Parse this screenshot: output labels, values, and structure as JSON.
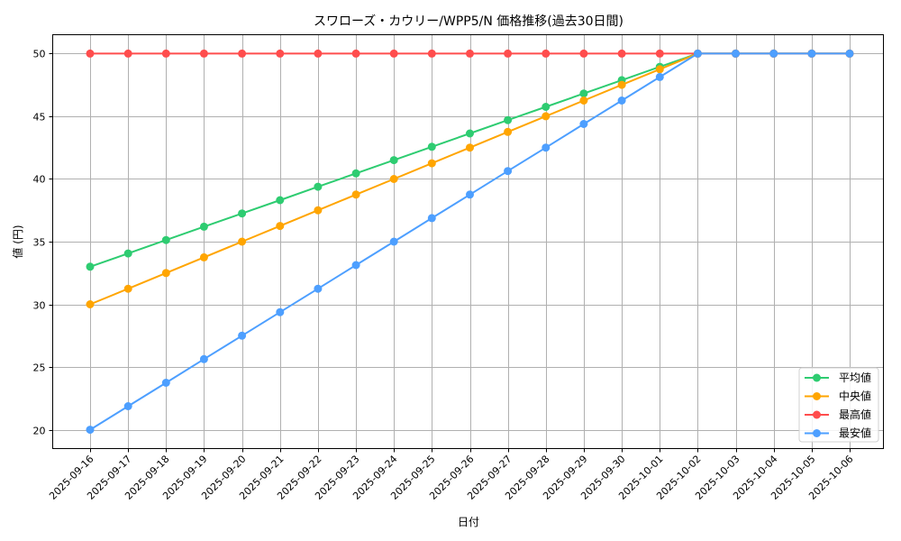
{
  "chart_data": {
    "type": "line",
    "title": "スワローズ・カウリー/WPP5/N 価格推移(過去30日間)",
    "xlabel": "日付",
    "ylabel": "値 (円)",
    "ylim": [
      18.5,
      51.5
    ],
    "yticks": [
      20,
      25,
      30,
      35,
      40,
      45,
      50
    ],
    "grid": true,
    "legend_position": "lower right",
    "x": [
      "2025-09-16",
      "2025-09-17",
      "2025-09-18",
      "2025-09-19",
      "2025-09-20",
      "2025-09-21",
      "2025-09-22",
      "2025-09-23",
      "2025-09-24",
      "2025-09-25",
      "2025-09-26",
      "2025-09-27",
      "2025-09-28",
      "2025-09-29",
      "2025-09-30",
      "2025-10-01",
      "2025-10-02",
      "2025-10-03",
      "2025-10-04",
      "2025-10-05",
      "2025-10-06"
    ],
    "series": [
      {
        "name": "平均値",
        "color": "#2ecc71",
        "values": [
          33.0,
          34.06,
          35.13,
          36.19,
          37.25,
          38.31,
          39.38,
          40.44,
          41.5,
          42.56,
          43.63,
          44.69,
          45.75,
          46.81,
          47.88,
          48.94,
          50.0,
          50.0,
          50.0,
          50.0,
          50.0
        ]
      },
      {
        "name": "中央値",
        "color": "#ffa500",
        "values": [
          30.0,
          31.25,
          32.5,
          33.75,
          35.0,
          36.25,
          37.5,
          38.75,
          40.0,
          41.25,
          42.5,
          43.75,
          45.0,
          46.25,
          47.5,
          48.75,
          50.0,
          50.0,
          50.0,
          50.0,
          50.0
        ]
      },
      {
        "name": "最高値",
        "color": "#ff4d4d",
        "values": [
          50,
          50,
          50,
          50,
          50,
          50,
          50,
          50,
          50,
          50,
          50,
          50,
          50,
          50,
          50,
          50,
          50,
          50,
          50,
          50,
          50
        ]
      },
      {
        "name": "最安値",
        "color": "#4d9fff",
        "values": [
          20.0,
          21.88,
          23.75,
          25.63,
          27.5,
          29.38,
          31.25,
          33.13,
          35.0,
          36.88,
          38.75,
          40.63,
          42.5,
          44.38,
          46.25,
          48.13,
          50.0,
          50.0,
          50.0,
          50.0,
          50.0
        ]
      }
    ]
  }
}
